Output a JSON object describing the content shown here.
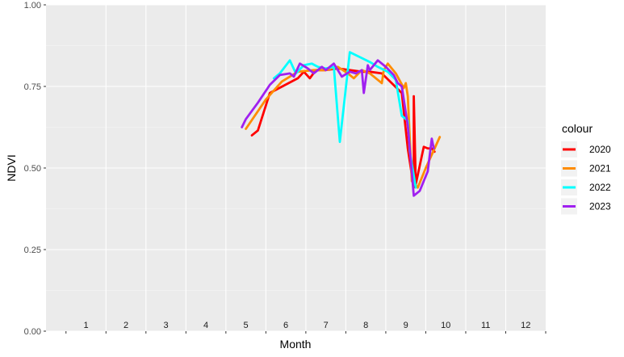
{
  "chart_data": {
    "type": "line",
    "xlabel": "Month",
    "ylabel": "NDVI",
    "xlim": [
      0,
      12.5
    ],
    "ylim": [
      0,
      1
    ],
    "x_tick_labels": [
      "1",
      "2",
      "3",
      "4",
      "5",
      "6",
      "7",
      "8",
      "9",
      "10",
      "11",
      "12"
    ],
    "y_ticks": [
      0,
      0.25,
      0.5,
      0.75,
      1
    ],
    "y_tick_labels": [
      "0.00",
      "0.25",
      "0.50",
      "0.75",
      "1.00"
    ],
    "grid": true,
    "legend_title": "colour",
    "legend_position": "right",
    "series": [
      {
        "name": "2020",
        "color": "#ff0000",
        "x": [
          5.15,
          5.3,
          5.6,
          6.3,
          6.45,
          6.6,
          6.75,
          7.0,
          7.3,
          7.9,
          8.1,
          8.4,
          8.9,
          9.05,
          9.2,
          9.2,
          9.25,
          9.45,
          9.55,
          9.65,
          9.72
        ],
        "y": [
          0.6,
          0.615,
          0.73,
          0.775,
          0.795,
          0.775,
          0.8,
          0.8,
          0.805,
          0.795,
          0.795,
          0.79,
          0.73,
          0.56,
          0.44,
          0.72,
          0.45,
          0.565,
          0.56,
          0.56,
          0.55
        ]
      },
      {
        "name": "2021",
        "color": "#ff8c00",
        "x": [
          5.0,
          5.5,
          5.9,
          6.3,
          6.7,
          7.0,
          7.3,
          7.55,
          7.7,
          7.9,
          8.1,
          8.4,
          8.45,
          8.55,
          8.75,
          8.95,
          9.0,
          9.05,
          9.15,
          9.3,
          9.5,
          9.85
        ],
        "y": [
          0.62,
          0.71,
          0.765,
          0.795,
          0.8,
          0.8,
          0.81,
          0.79,
          0.775,
          0.8,
          0.79,
          0.76,
          0.8,
          0.82,
          0.79,
          0.745,
          0.76,
          0.72,
          0.46,
          0.44,
          0.5,
          0.595
        ]
      },
      {
        "name": "2022",
        "color": "#00ffff",
        "x": [
          5.7,
          5.85,
          6.1,
          6.25,
          6.45,
          6.65,
          6.8,
          7.0,
          7.2,
          7.35,
          7.6,
          8.1,
          8.3,
          8.55,
          8.75,
          8.9,
          9.05,
          9.1,
          9.25
        ],
        "y": [
          0.775,
          0.79,
          0.83,
          0.79,
          0.815,
          0.82,
          0.81,
          0.805,
          0.81,
          0.58,
          0.855,
          0.825,
          0.81,
          0.795,
          0.77,
          0.66,
          0.645,
          0.55,
          0.44
        ]
      },
      {
        "name": "2023",
        "color": "#a020f0",
        "x": [
          4.9,
          5.0,
          5.3,
          5.6,
          5.85,
          6.1,
          6.2,
          6.35,
          6.55,
          6.7,
          6.9,
          7.0,
          7.2,
          7.4,
          7.6,
          7.75,
          7.9,
          7.95,
          8.05,
          8.1,
          8.3,
          8.5,
          8.7,
          8.8,
          8.9,
          9.05,
          9.2,
          9.35,
          9.55,
          9.65,
          9.7
        ],
        "y": [
          0.625,
          0.65,
          0.7,
          0.755,
          0.785,
          0.79,
          0.78,
          0.82,
          0.805,
          0.79,
          0.81,
          0.8,
          0.82,
          0.78,
          0.795,
          0.79,
          0.8,
          0.73,
          0.815,
          0.8,
          0.83,
          0.81,
          0.785,
          0.76,
          0.75,
          0.63,
          0.415,
          0.43,
          0.49,
          0.59,
          0.56
        ]
      }
    ]
  }
}
